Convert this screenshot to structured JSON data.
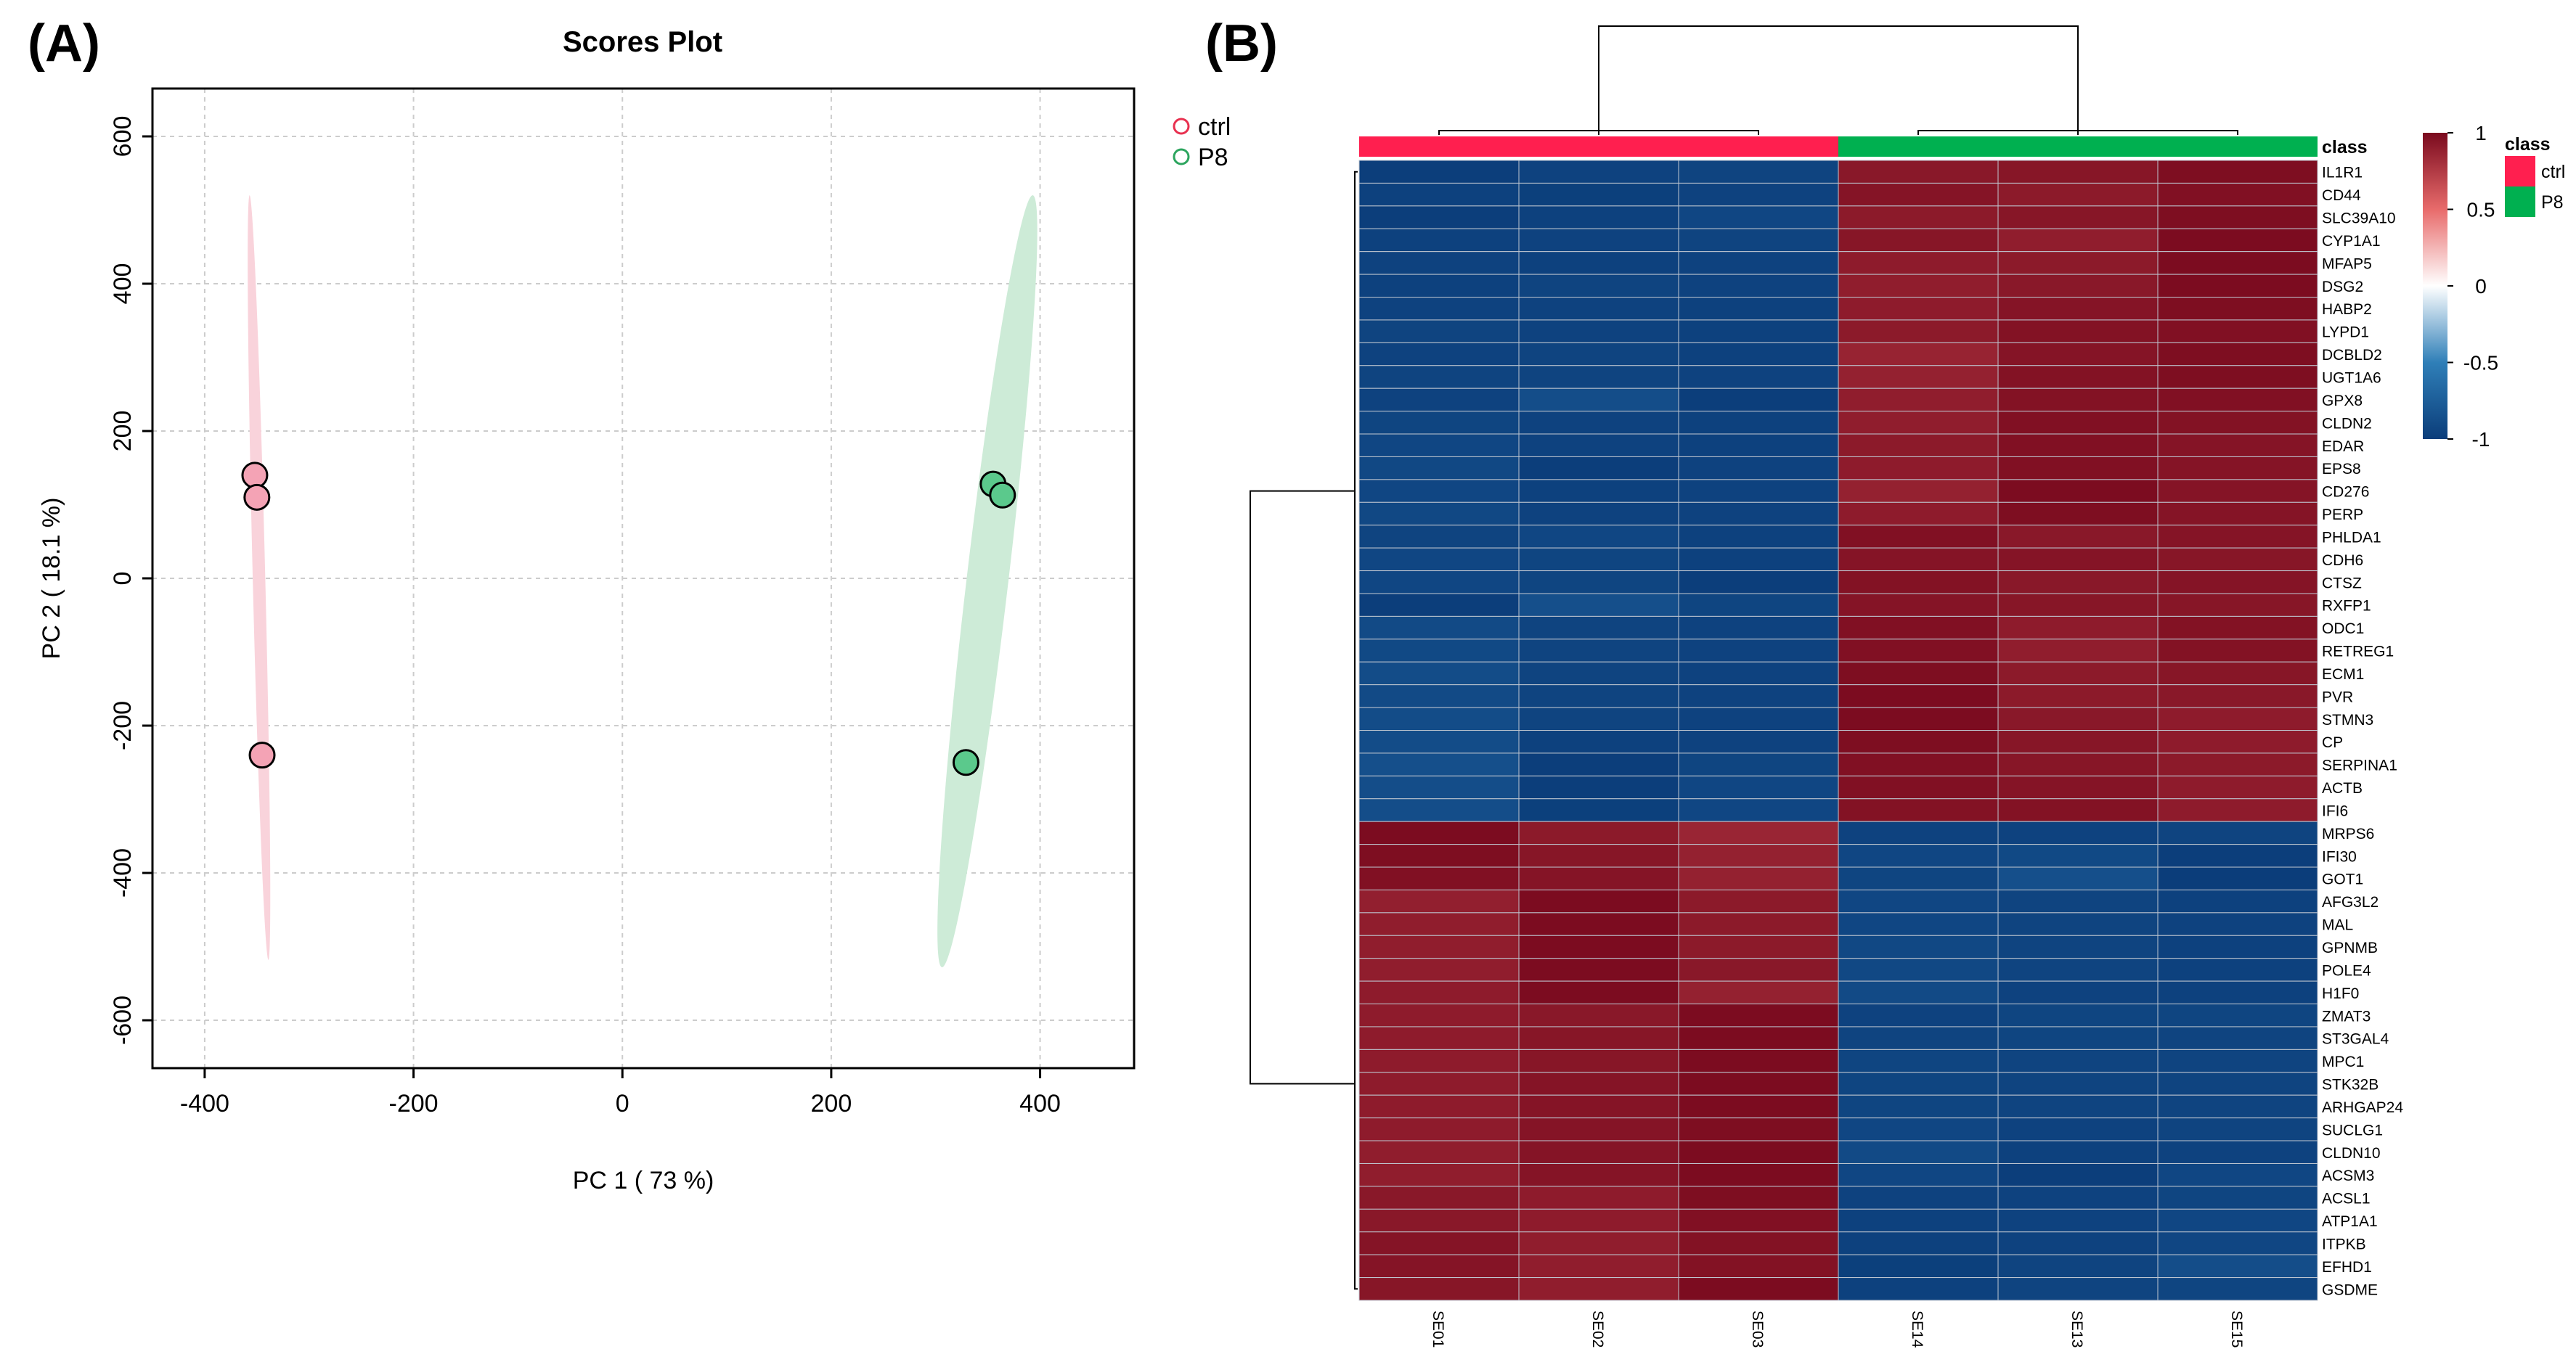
{
  "chart_data": [
    {
      "panel": "(A)",
      "type": "scatter",
      "title": "Scores Plot",
      "xlabel": "PC 1 ( 73 %)",
      "ylabel": "PC 2 ( 18.1 %)",
      "xlim": [
        -450,
        490
      ],
      "ylim": [
        -665,
        665
      ],
      "xticks": [
        "-400",
        "-200",
        "0",
        "200",
        "400"
      ],
      "xtick_values": [
        -400,
        -200,
        0,
        200,
        400
      ],
      "yticks": [
        "-600",
        "-400",
        "-200",
        "0",
        "200",
        "400",
        "600"
      ],
      "ytick_values": [
        -600,
        -400,
        -200,
        0,
        200,
        400,
        600
      ],
      "grid": true,
      "legend_position": "top-right outside",
      "series": [
        {
          "name": "ctrl",
          "color": "#F4A3B5",
          "edge": "#E8304F",
          "points": [
            [
              -352,
              140
            ],
            [
              -350,
              110
            ],
            [
              -345,
              -240
            ]
          ],
          "ellipse": {
            "center": [
              -348,
              2
            ],
            "top": [
              -357,
              520
            ],
            "bottom": [
              -339,
              -518
            ],
            "half_width": 6,
            "color": "#F9D3DB"
          }
        },
        {
          "name": "P8",
          "color": "#5BC98C",
          "edge": "#2CA55E",
          "points": [
            [
              355,
              128
            ],
            [
              364,
              113
            ],
            [
              329,
              -250
            ]
          ],
          "ellipse": {
            "center": [
              349,
              -3
            ],
            "top": [
              393,
              520
            ],
            "bottom": [
              306,
              -528
            ],
            "half_width": 20,
            "color": "#CDEBD7"
          }
        }
      ]
    },
    {
      "panel": "(B)",
      "type": "heatmap",
      "samples": [
        "SE01",
        "SE02",
        "SE03",
        "SE14",
        "SE13",
        "SE15"
      ],
      "sample_class": [
        "ctrl",
        "ctrl",
        "ctrl",
        "P8",
        "P8",
        "P8"
      ],
      "class_label": "class",
      "class_legend": [
        {
          "name": "ctrl",
          "color": "#FF1F4F"
        },
        {
          "name": "P8",
          "color": "#00B050"
        }
      ],
      "colorbar": {
        "ticks": [
          "1",
          "0.5",
          "0",
          "-0.5",
          "-1"
        ],
        "tick_values": [
          1,
          0.5,
          0,
          -0.5,
          -1
        ],
        "range": [
          -1,
          1
        ],
        "colors": [
          "#0B3D7A",
          "#2F7FB8",
          "#FFFFFF",
          "#E86B6B",
          "#7A0A1E"
        ]
      },
      "genes": [
        "IL1R1",
        "CD44",
        "SLC39A10",
        "CYP1A1",
        "MFAP5",
        "DSG2",
        "HABP2",
        "LYPD1",
        "DCBLD2",
        "UGT1A6",
        "GPX8",
        "CLDN2",
        "EDAR",
        "EPS8",
        "CD276",
        "PERP",
        "PHLDA1",
        "CDH6",
        "CTSZ",
        "RXFP1",
        "ODC1",
        "RETREG1",
        "ECM1",
        "PVR",
        "STMN3",
        "CP",
        "SERPINA1",
        "ACTB",
        "IFI6",
        "MRPS6",
        "IFI30",
        "GOT1",
        "AFG3L2",
        "MAL",
        "GPNMB",
        "POLE4",
        "H1F0",
        "ZMAT3",
        "ST3GAL4",
        "MPC1",
        "STK32B",
        "ARHGAP24",
        "SUCLG1",
        "CLDN10",
        "ACSM3",
        "ACSL1",
        "ATP1A1",
        "ITPKB",
        "EFHD1",
        "GSDME"
      ],
      "values": [
        [
          -0.99,
          -0.96,
          -0.95,
          0.93,
          0.94,
          0.98
        ],
        [
          -0.97,
          -0.98,
          -0.96,
          0.95,
          0.92,
          0.97
        ],
        [
          -0.99,
          -0.97,
          -0.93,
          0.92,
          0.94,
          0.98
        ],
        [
          -0.97,
          -0.96,
          -0.95,
          0.94,
          0.9,
          0.99
        ],
        [
          -0.96,
          -0.97,
          -0.96,
          0.91,
          0.92,
          0.99
        ],
        [
          -0.97,
          -0.95,
          -0.96,
          0.9,
          0.93,
          0.99
        ],
        [
          -0.96,
          -0.96,
          -0.97,
          0.91,
          0.95,
          0.98
        ],
        [
          -0.95,
          -0.96,
          -0.97,
          0.92,
          0.96,
          0.97
        ],
        [
          -0.96,
          -0.95,
          -0.97,
          0.87,
          0.95,
          0.98
        ],
        [
          -0.95,
          -0.95,
          -0.96,
          0.88,
          0.96,
          0.98
        ],
        [
          -0.96,
          -0.88,
          -0.99,
          0.9,
          0.96,
          0.97
        ],
        [
          -0.94,
          -0.96,
          -0.97,
          0.9,
          0.97,
          0.96
        ],
        [
          -0.93,
          -0.96,
          -0.97,
          0.92,
          0.97,
          0.95
        ],
        [
          -0.92,
          -0.99,
          -0.96,
          0.91,
          0.97,
          0.95
        ],
        [
          -0.93,
          -0.97,
          -0.96,
          0.88,
          0.99,
          0.95
        ],
        [
          -0.92,
          -0.96,
          -0.96,
          0.91,
          0.98,
          0.95
        ],
        [
          -0.95,
          -0.93,
          -0.97,
          0.97,
          0.93,
          0.95
        ],
        [
          -0.93,
          -0.94,
          -0.97,
          0.95,
          0.95,
          0.94
        ],
        [
          -0.93,
          -0.94,
          -0.99,
          0.96,
          0.93,
          0.95
        ],
        [
          -0.99,
          -0.86,
          -0.94,
          0.95,
          0.94,
          0.94
        ],
        [
          -0.9,
          -0.95,
          -0.96,
          0.97,
          0.91,
          0.96
        ],
        [
          -0.91,
          -0.95,
          -0.96,
          0.97,
          0.9,
          0.96
        ],
        [
          -0.89,
          -0.95,
          -0.96,
          0.98,
          0.92,
          0.94
        ],
        [
          -0.9,
          -0.95,
          -0.96,
          0.99,
          0.92,
          0.93
        ],
        [
          -0.89,
          -0.95,
          -0.96,
          0.99,
          0.93,
          0.91
        ],
        [
          -0.89,
          -0.97,
          -0.96,
          0.98,
          0.94,
          0.91
        ],
        [
          -0.86,
          -0.99,
          -0.94,
          0.97,
          0.94,
          0.92
        ],
        [
          -0.88,
          -0.99,
          -0.93,
          0.97,
          0.95,
          0.91
        ],
        [
          -0.88,
          -0.98,
          -0.93,
          0.96,
          0.96,
          0.91
        ],
        [
          0.99,
          0.92,
          0.86,
          -0.96,
          -0.96,
          -0.95
        ],
        [
          0.98,
          0.94,
          0.88,
          -0.93,
          -0.91,
          -0.99
        ],
        [
          0.97,
          0.95,
          0.88,
          -0.94,
          -0.86,
          -1.0
        ],
        [
          0.89,
          0.99,
          0.92,
          -0.93,
          -0.95,
          -0.97
        ],
        [
          0.9,
          0.99,
          0.92,
          -0.93,
          -0.95,
          -0.96
        ],
        [
          0.9,
          0.99,
          0.92,
          -0.92,
          -0.95,
          -0.97
        ],
        [
          0.9,
          0.99,
          0.93,
          -0.92,
          -0.95,
          -0.97
        ],
        [
          0.91,
          0.99,
          0.88,
          -0.9,
          -0.96,
          -0.97
        ],
        [
          0.91,
          0.93,
          0.99,
          -0.96,
          -0.94,
          -0.94
        ],
        [
          0.91,
          0.94,
          0.99,
          -0.95,
          -0.94,
          -0.95
        ],
        [
          0.91,
          0.94,
          0.99,
          -0.94,
          -0.95,
          -0.95
        ],
        [
          0.91,
          0.95,
          0.99,
          -0.94,
          -0.95,
          -0.95
        ],
        [
          0.91,
          0.95,
          0.99,
          -0.94,
          -0.95,
          -0.95
        ],
        [
          0.91,
          0.95,
          0.98,
          -0.93,
          -0.96,
          -0.95
        ],
        [
          0.9,
          0.95,
          0.99,
          -0.9,
          -0.97,
          -0.96
        ],
        [
          0.9,
          0.95,
          0.99,
          -0.93,
          -0.99,
          -0.93
        ],
        [
          0.93,
          0.91,
          0.98,
          -0.96,
          -0.96,
          -0.94
        ],
        [
          0.93,
          0.91,
          0.97,
          -0.97,
          -0.96,
          -0.93
        ],
        [
          0.95,
          0.9,
          0.96,
          -0.97,
          -0.96,
          -0.93
        ],
        [
          0.95,
          0.9,
          0.96,
          -0.98,
          -0.95,
          -0.88
        ],
        [
          0.94,
          0.9,
          0.99,
          -0.97,
          -0.95,
          -0.94
        ]
      ]
    }
  ]
}
